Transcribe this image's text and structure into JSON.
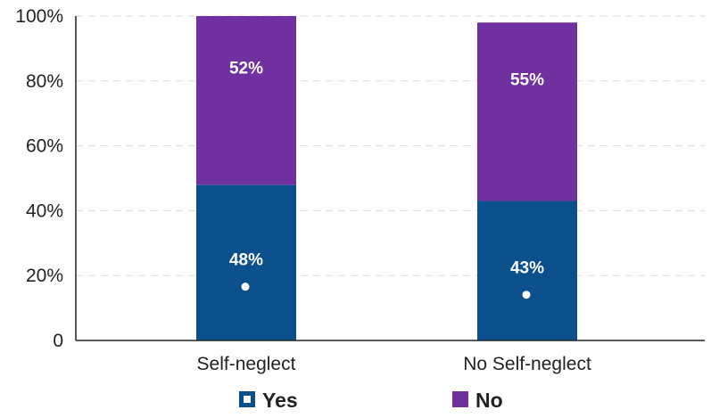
{
  "chart_data": {
    "type": "bar",
    "stacked": true,
    "categories": [
      "Self-neglect",
      "No Self-neglect"
    ],
    "series": [
      {
        "name": "Yes",
        "values": [
          48,
          43
        ],
        "labels": [
          "48%",
          "43%"
        ],
        "color": "#0b4f8c"
      },
      {
        "name": "No",
        "values": [
          52,
          55
        ],
        "labels": [
          "52%",
          "55%"
        ],
        "color": "#7030a0"
      }
    ],
    "ylim": [
      0,
      100
    ],
    "yticks": [
      0,
      20,
      40,
      60,
      80,
      100
    ],
    "ytick_labels": [
      "0",
      "20%",
      "40%",
      "60%",
      "80%",
      "100%"
    ],
    "grid": true,
    "legend_position": "bottom"
  }
}
